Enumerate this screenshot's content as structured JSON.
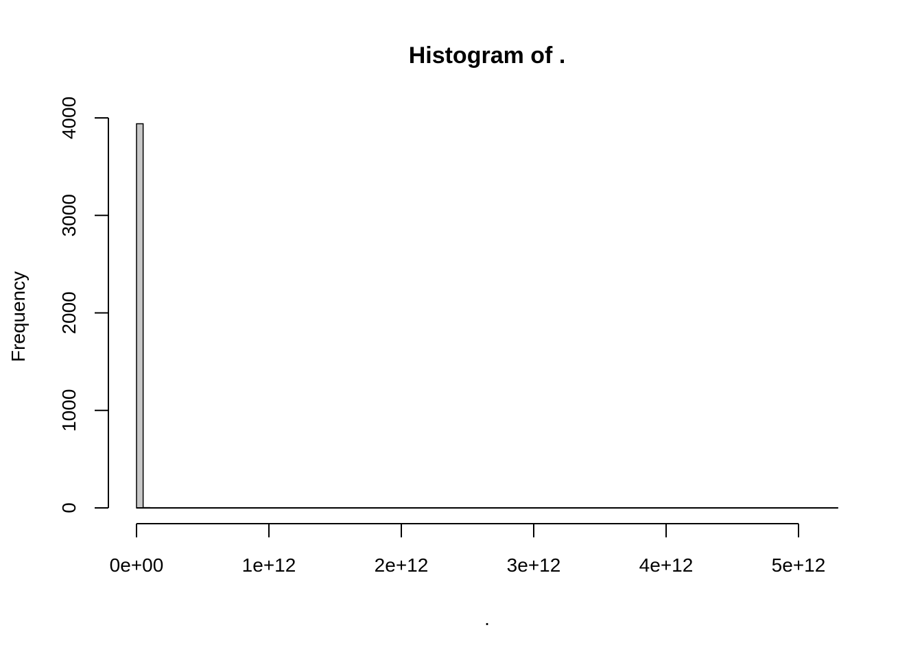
{
  "chart_data": {
    "type": "bar",
    "title": "Histogram of .",
    "xlabel": ".",
    "ylabel": "Frequency",
    "xlim": [
      0,
      5300000000000
    ],
    "ylim": [
      0,
      4000
    ],
    "x_ticks": [
      0,
      1000000000000,
      2000000000000,
      3000000000000,
      4000000000000,
      5000000000000
    ],
    "x_tick_labels": [
      "0e+00",
      "1e+12",
      "2e+12",
      "3e+12",
      "4e+12",
      "5e+12"
    ],
    "y_ticks": [
      0,
      1000,
      2000,
      3000,
      4000
    ],
    "y_tick_labels": [
      "0",
      "1000",
      "2000",
      "3000",
      "4000"
    ],
    "bin_width": 50000000000,
    "bins": [
      {
        "x0": 0,
        "x1": 50000000000,
        "count": 3940
      },
      {
        "x0": 50000000000,
        "x1": 100000000000,
        "count": 3
      }
    ],
    "bar_color": "#c8c8c8",
    "grid": false,
    "legend": "none"
  }
}
